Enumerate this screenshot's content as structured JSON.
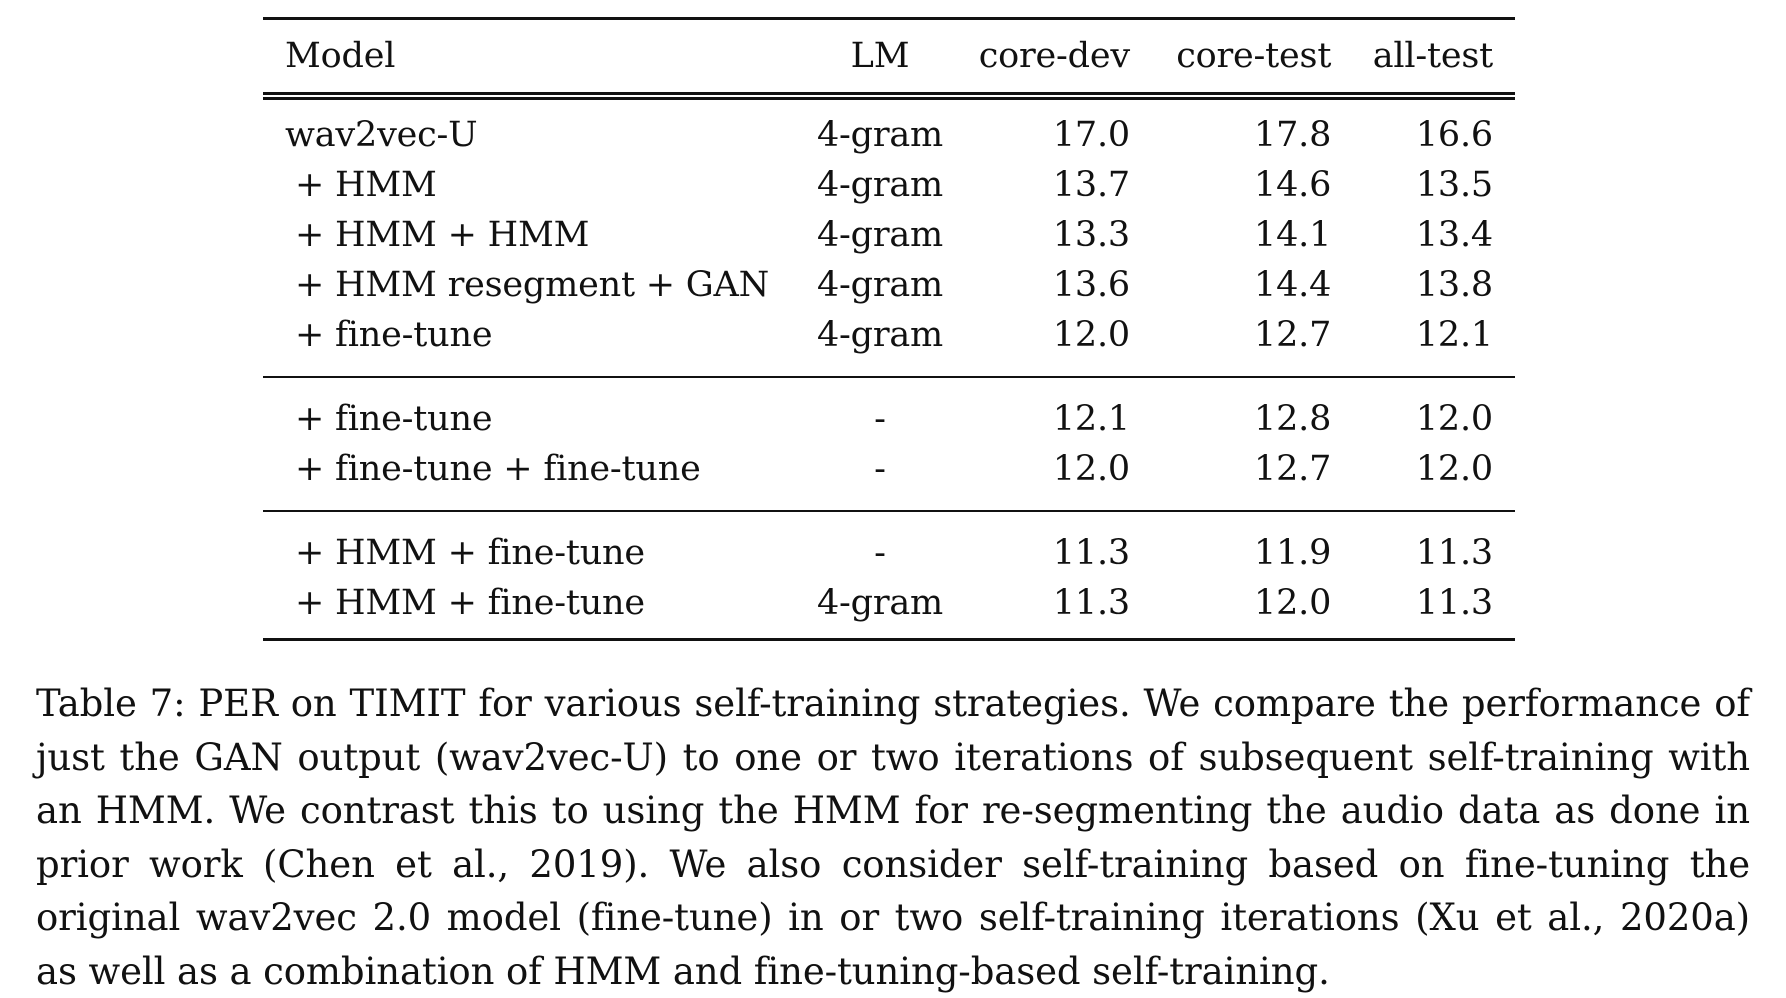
{
  "table": {
    "headers": [
      "Model",
      "LM",
      "core-dev",
      "core-test",
      "all-test"
    ],
    "groups": [
      [
        {
          "model": "wav2vec-U",
          "lm": "4-gram",
          "core_dev": "17.0",
          "core_test": "17.8",
          "all_test": "16.6"
        },
        {
          "model": "+ HMM",
          "lm": "4-gram",
          "core_dev": "13.7",
          "core_test": "14.6",
          "all_test": "13.5"
        },
        {
          "model": "+ HMM + HMM",
          "lm": "4-gram",
          "core_dev": "13.3",
          "core_test": "14.1",
          "all_test": "13.4"
        },
        {
          "model": "+ HMM resegment + GAN",
          "lm": "4-gram",
          "core_dev": "13.6",
          "core_test": "14.4",
          "all_test": "13.8"
        },
        {
          "model": "+ fine-tune",
          "lm": "4-gram",
          "core_dev": "12.0",
          "core_test": "12.7",
          "all_test": "12.1"
        }
      ],
      [
        {
          "model": "+ fine-tune",
          "lm": "-",
          "core_dev": "12.1",
          "core_test": "12.8",
          "all_test": "12.0"
        },
        {
          "model": "+ fine-tune + fine-tune",
          "lm": "-",
          "core_dev": "12.0",
          "core_test": "12.7",
          "all_test": "12.0"
        }
      ],
      [
        {
          "model": "+ HMM + fine-tune",
          "lm": "-",
          "core_dev": "11.3",
          "core_test": "11.9",
          "all_test": "11.3"
        },
        {
          "model": "+ HMM + fine-tune",
          "lm": "4-gram",
          "core_dev": "11.3",
          "core_test": "12.0",
          "all_test": "11.3"
        }
      ]
    ]
  },
  "caption": "Table 7: PER on TIMIT for various self-training strategies. We compare the performance of just the GAN output (wav2vec-U) to one or two iterations of subsequent self-training with an HMM. We contrast this to using the HMM for re-segmenting the audio data as done in prior work (Chen et al., 2019). We also consider self-training based on fine-tuning the original wav2vec 2.0 model (fine-tune) in or two self-training iterations (Xu et al., 2020a) as well as a combination of HMM and fine-tuning-based self-training."
}
